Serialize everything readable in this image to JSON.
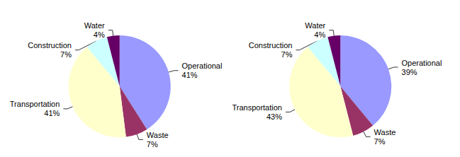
{
  "chart_data": [
    {
      "type": "pie",
      "categories": [
        "Operational",
        "Waste",
        "Transportation",
        "Construction",
        "Water"
      ],
      "values": [
        41,
        7,
        41,
        7,
        4
      ],
      "value_labels": [
        "41%",
        "7%",
        "41%",
        "7%",
        "4%"
      ],
      "colors": [
        "#9999ff",
        "#993366",
        "#ffffcc",
        "#ccffff",
        "#660066"
      ],
      "data_labels": true
    },
    {
      "type": "pie",
      "categories": [
        "Operational",
        "Waste",
        "Transportation",
        "Construction",
        "Water"
      ],
      "values": [
        39,
        7,
        43,
        7,
        4
      ],
      "value_labels": [
        "39%",
        "7%",
        "43%",
        "7%",
        "4%"
      ],
      "colors": [
        "#9999ff",
        "#993366",
        "#ffffcc",
        "#ccffff",
        "#660066"
      ],
      "data_labels": true
    }
  ]
}
